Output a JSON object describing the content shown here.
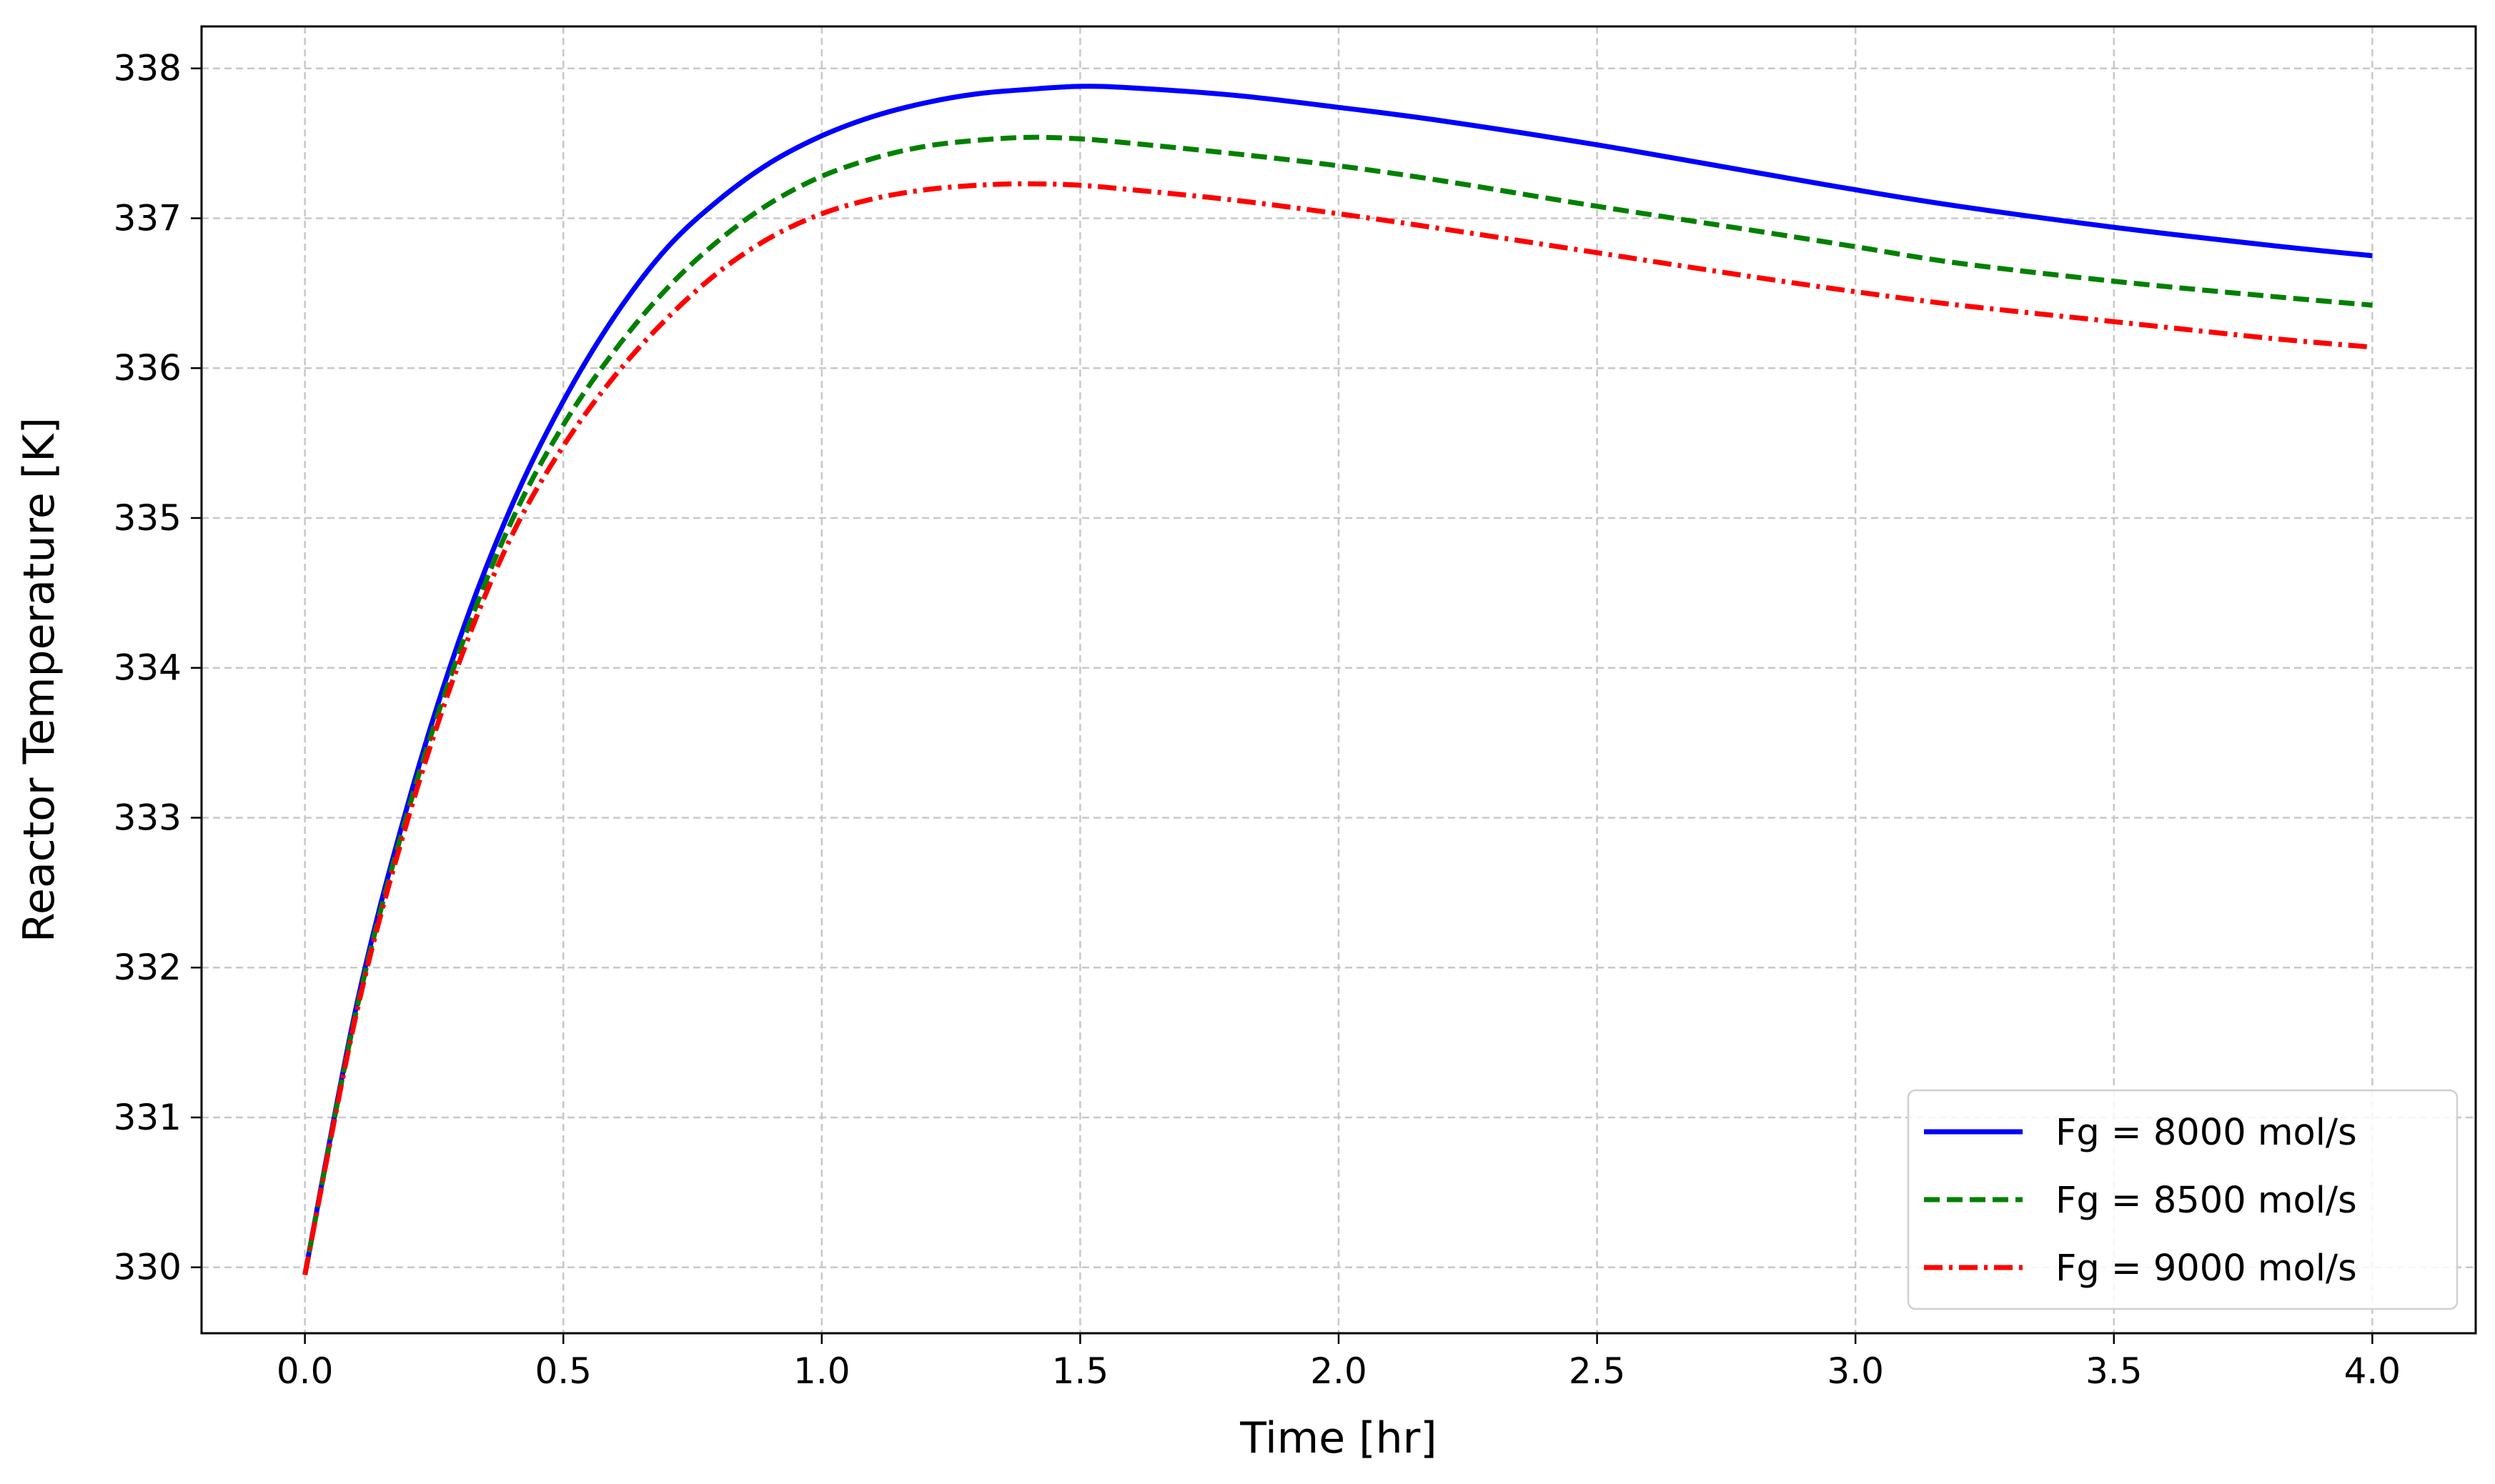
{
  "chart_data": {
    "type": "line",
    "title": "",
    "xlabel": "Time [hr]",
    "ylabel": "Reactor Temperature [K]",
    "xlim": [
      -0.2,
      4.2
    ],
    "ylim": [
      329.56,
      338.28
    ],
    "xticks": [
      0.0,
      0.5,
      1.0,
      1.5,
      2.0,
      2.5,
      3.0,
      3.5,
      4.0
    ],
    "xtick_labels": [
      "0.0",
      "0.5",
      "1.0",
      "1.5",
      "2.0",
      "2.5",
      "3.0",
      "3.5",
      "4.0"
    ],
    "yticks": [
      330,
      331,
      332,
      333,
      334,
      335,
      336,
      337,
      338
    ],
    "ytick_labels": [
      "330",
      "331",
      "332",
      "333",
      "334",
      "335",
      "336",
      "337",
      "338"
    ],
    "grid": true,
    "legend_position": "lower-right",
    "series": [
      {
        "name": "Fg = 8000 mol/s",
        "color": "#0000ff",
        "style": "solid",
        "x": [
          0.0,
          0.1,
          0.2,
          0.3,
          0.4,
          0.5,
          0.6,
          0.7,
          0.8,
          0.9,
          1.0,
          1.1,
          1.2,
          1.3,
          1.4,
          1.5,
          1.6,
          1.8,
          2.0,
          2.2,
          2.5,
          2.8,
          3.0,
          3.2,
          3.5,
          3.8,
          4.0
        ],
        "y": [
          329.95,
          331.75,
          333.1,
          334.2,
          335.08,
          335.78,
          336.35,
          336.8,
          337.12,
          337.37,
          337.55,
          337.68,
          337.77,
          337.83,
          337.86,
          337.88,
          337.87,
          337.82,
          337.74,
          337.65,
          337.49,
          337.31,
          337.19,
          337.08,
          336.94,
          336.82,
          336.75
        ]
      },
      {
        "name": "Fg = 8500 mol/s",
        "color": "#008000",
        "style": "dashed",
        "x": [
          0.0,
          0.1,
          0.2,
          0.3,
          0.4,
          0.5,
          0.6,
          0.7,
          0.8,
          0.9,
          1.0,
          1.1,
          1.2,
          1.3,
          1.4,
          1.5,
          1.6,
          1.8,
          2.0,
          2.2,
          2.5,
          2.8,
          3.0,
          3.2,
          3.5,
          3.8,
          4.0
        ],
        "y": [
          329.95,
          331.72,
          333.05,
          334.12,
          334.98,
          335.62,
          336.12,
          336.53,
          336.85,
          337.1,
          337.28,
          337.4,
          337.48,
          337.52,
          337.54,
          337.53,
          337.5,
          337.43,
          337.35,
          337.25,
          337.08,
          336.92,
          336.81,
          336.7,
          336.58,
          336.48,
          336.42
        ]
      },
      {
        "name": "Fg = 9000 mol/s",
        "color": "#ff0000",
        "style": "dashdot",
        "x": [
          0.0,
          0.1,
          0.2,
          0.3,
          0.4,
          0.5,
          0.6,
          0.7,
          0.8,
          0.9,
          1.0,
          1.1,
          1.2,
          1.3,
          1.4,
          1.5,
          1.6,
          1.8,
          2.0,
          2.2,
          2.5,
          2.8,
          3.0,
          3.2,
          3.5,
          3.8,
          4.0
        ],
        "y": [
          329.95,
          331.7,
          333.0,
          334.05,
          334.88,
          335.48,
          335.95,
          336.33,
          336.64,
          336.87,
          337.03,
          337.13,
          337.19,
          337.22,
          337.23,
          337.22,
          337.19,
          337.12,
          337.03,
          336.93,
          336.77,
          336.61,
          336.51,
          336.42,
          336.31,
          336.2,
          336.14
        ]
      }
    ]
  }
}
